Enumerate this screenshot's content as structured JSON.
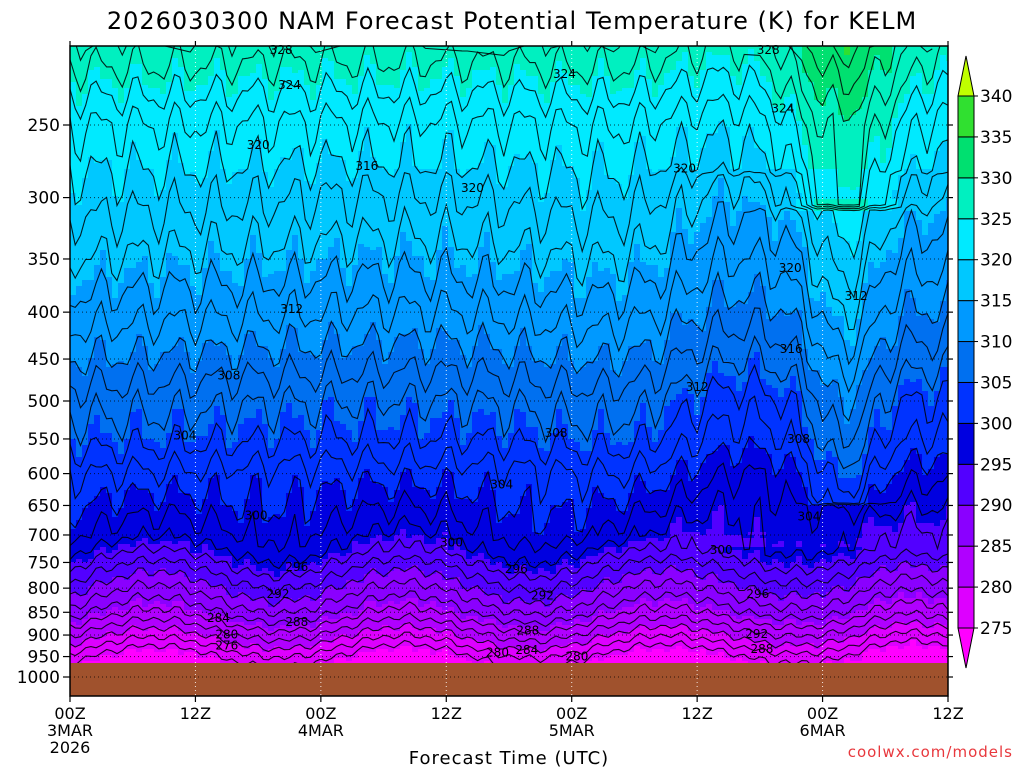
{
  "chart_data": {
    "type": "heatmap",
    "title": "2026030300 NAM Forecast Potential Temperature (K) for KELM",
    "xlabel": "Forecast Time (UTC)",
    "ylabel": "",
    "credit": "coolwx.com/models",
    "y_ticks": [
      "250",
      "300",
      "350",
      "400",
      "450",
      "500",
      "550",
      "600",
      "650",
      "700",
      "750",
      "800",
      "850",
      "900",
      "950",
      "1000"
    ],
    "ylim": [
      1000,
      200
    ],
    "x_ticks": [
      {
        "hour": 0,
        "lines": [
          "00Z",
          "3MAR",
          "2026"
        ]
      },
      {
        "hour": 12,
        "lines": [
          "12Z"
        ]
      },
      {
        "hour": 24,
        "lines": [
          "00Z",
          "4MAR"
        ]
      },
      {
        "hour": 36,
        "lines": [
          "12Z"
        ]
      },
      {
        "hour": 48,
        "lines": [
          "00Z",
          "5MAR"
        ]
      },
      {
        "hour": 60,
        "lines": [
          "12Z"
        ]
      },
      {
        "hour": 72,
        "lines": [
          "00Z",
          "6MAR"
        ]
      },
      {
        "hour": 84,
        "lines": [
          "12Z"
        ]
      }
    ],
    "xlim": [
      0,
      84
    ],
    "colorbar": {
      "levels": [
        275,
        280,
        285,
        290,
        295,
        300,
        305,
        310,
        315,
        320,
        325,
        330,
        335,
        340
      ],
      "labels": [
        "275",
        "280",
        "285",
        "290",
        "295",
        "300",
        "305",
        "310",
        "315",
        "320",
        "325",
        "330",
        "335",
        "340"
      ],
      "colors": [
        "#ff00ff",
        "#dd00ff",
        "#b000ff",
        "#8a00ff",
        "#5200ff",
        "#0000e0",
        "#0033ff",
        "#0070f0",
        "#0099ff",
        "#00c8ff",
        "#00eaff",
        "#00f0c0",
        "#00e070",
        "#30e030",
        "#c0ff00"
      ]
    },
    "ground_color": "#a0522d",
    "contour_labels": [
      {
        "text": "328",
        "hour": 20.2,
        "p": 207
      },
      {
        "text": "328",
        "hour": 66.8,
        "p": 207
      },
      {
        "text": "324",
        "hour": 21.0,
        "p": 226
      },
      {
        "text": "324",
        "hour": 47.3,
        "p": 220
      },
      {
        "text": "324",
        "hour": 68.2,
        "p": 240
      },
      {
        "text": "320",
        "hour": 18.0,
        "p": 263
      },
      {
        "text": "320",
        "hour": 38.5,
        "p": 293
      },
      {
        "text": "320",
        "hour": 58.8,
        "p": 279
      },
      {
        "text": "320",
        "hour": 68.9,
        "p": 358
      },
      {
        "text": "316",
        "hour": 28.4,
        "p": 277
      },
      {
        "text": "316",
        "hour": 69.0,
        "p": 439
      },
      {
        "text": "312",
        "hour": 21.2,
        "p": 397
      },
      {
        "text": "312",
        "hour": 60.0,
        "p": 483
      },
      {
        "text": "312",
        "hour": 75.2,
        "p": 384
      },
      {
        "text": "308",
        "hour": 15.2,
        "p": 469
      },
      {
        "text": "308",
        "hour": 46.5,
        "p": 542
      },
      {
        "text": "308",
        "hour": 69.7,
        "p": 550
      },
      {
        "text": "304",
        "hour": 11.0,
        "p": 545
      },
      {
        "text": "304",
        "hour": 41.3,
        "p": 617
      },
      {
        "text": "304",
        "hour": 70.7,
        "p": 668
      },
      {
        "text": "300",
        "hour": 17.8,
        "p": 667
      },
      {
        "text": "300",
        "hour": 36.5,
        "p": 713
      },
      {
        "text": "300",
        "hour": 62.3,
        "p": 727
      },
      {
        "text": "296",
        "hour": 21.7,
        "p": 759
      },
      {
        "text": "296",
        "hour": 42.7,
        "p": 762
      },
      {
        "text": "296",
        "hour": 65.8,
        "p": 812
      },
      {
        "text": "292",
        "hour": 19.9,
        "p": 812
      },
      {
        "text": "292",
        "hour": 45.2,
        "p": 815
      },
      {
        "text": "292",
        "hour": 65.7,
        "p": 898
      },
      {
        "text": "288",
        "hour": 21.7,
        "p": 871
      },
      {
        "text": "288",
        "hour": 43.8,
        "p": 890
      },
      {
        "text": "288",
        "hour": 66.2,
        "p": 932
      },
      {
        "text": "284",
        "hour": 14.2,
        "p": 862
      },
      {
        "text": "284",
        "hour": 43.7,
        "p": 934
      },
      {
        "text": "280",
        "hour": 15.0,
        "p": 899
      },
      {
        "text": "280",
        "hour": 40.9,
        "p": 940
      },
      {
        "text": "280",
        "hour": 48.5,
        "p": 950
      },
      {
        "text": "276",
        "hour": 15.0,
        "p": 924
      }
    ]
  }
}
